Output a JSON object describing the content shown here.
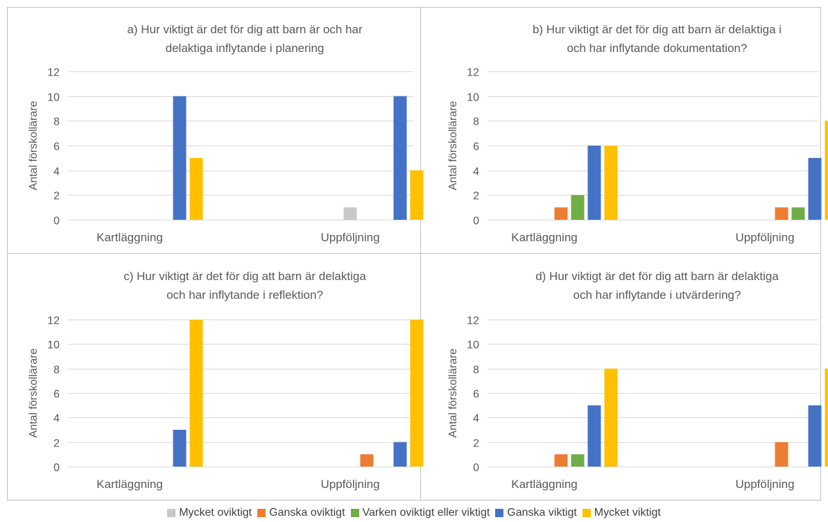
{
  "chart_data": [
    {
      "type": "bar",
      "title": "a) Hur viktigt är det för dig att barn är delaktiga och har inflytande i planering",
      "ylabel": "Antal förskollärare",
      "xlabel": "",
      "ylim": [
        0,
        12
      ],
      "yticks": [
        "0",
        "2",
        "4",
        "6",
        "8",
        "10",
        "12"
      ],
      "categories": [
        "Kartläggning",
        "Uppföljning"
      ],
      "series": [
        {
          "name": "Mycket oviktigt",
          "values": [
            0,
            1
          ]
        },
        {
          "name": "Ganska oviktigt",
          "values": [
            0,
            0
          ]
        },
        {
          "name": "Varken oviktigt eller viktigt",
          "values": [
            0,
            0
          ]
        },
        {
          "name": "Ganska viktigt",
          "values": [
            10,
            10
          ]
        },
        {
          "name": "Mycket viktigt",
          "values": [
            5,
            4
          ]
        }
      ]
    },
    {
      "type": "bar",
      "title": "b) Hur viktigt är det för dig att barn är delaktiga och har inflytande i dokumentation?",
      "ylabel": "Antal förskollärare",
      "xlabel": "",
      "ylim": [
        0,
        12
      ],
      "yticks": [
        "0",
        "2",
        "4",
        "6",
        "8",
        "10",
        "12"
      ],
      "categories": [
        "Kartläggning",
        "Uppföljning"
      ],
      "series": [
        {
          "name": "Mycket oviktigt",
          "values": [
            0,
            0
          ]
        },
        {
          "name": "Ganska oviktigt",
          "values": [
            1,
            1
          ]
        },
        {
          "name": "Varken oviktigt eller viktigt",
          "values": [
            2,
            1
          ]
        },
        {
          "name": "Ganska viktigt",
          "values": [
            6,
            5
          ]
        },
        {
          "name": "Mycket viktigt",
          "values": [
            6,
            8
          ]
        }
      ]
    },
    {
      "type": "bar",
      "title": "c) Hur viktigt är det för dig att barn är delaktiga och har inflytande i reflektion?",
      "ylabel": "Antal förskollärare",
      "xlabel": "",
      "ylim": [
        0,
        12
      ],
      "yticks": [
        "0",
        "2",
        "4",
        "6",
        "8",
        "10",
        "12"
      ],
      "categories": [
        "Kartläggning",
        "Uppföljning"
      ],
      "series": [
        {
          "name": "Mycket oviktigt",
          "values": [
            0,
            0
          ]
        },
        {
          "name": "Ganska oviktigt",
          "values": [
            0,
            1
          ]
        },
        {
          "name": "Varken oviktigt eller viktigt",
          "values": [
            0,
            0
          ]
        },
        {
          "name": "Ganska viktigt",
          "values": [
            3,
            2
          ]
        },
        {
          "name": "Mycket viktigt",
          "values": [
            12,
            12
          ]
        }
      ]
    },
    {
      "type": "bar",
      "title": "d) Hur viktigt är det för dig att barn är delaktiga och har inflytande i utvärdering?",
      "ylabel": "Antal förskollärare",
      "xlabel": "",
      "ylim": [
        0,
        12
      ],
      "yticks": [
        "0",
        "2",
        "4",
        "6",
        "8",
        "10",
        "12"
      ],
      "categories": [
        "Kartläggning",
        "Uppföljning"
      ],
      "series": [
        {
          "name": "Mycket oviktigt",
          "values": [
            0,
            0
          ]
        },
        {
          "name": "Ganska oviktigt",
          "values": [
            1,
            2
          ]
        },
        {
          "name": "Varken oviktigt eller viktigt",
          "values": [
            1,
            0
          ]
        },
        {
          "name": "Ganska viktigt",
          "values": [
            5,
            5
          ]
        },
        {
          "name": "Mycket viktigt",
          "values": [
            8,
            8
          ]
        }
      ]
    }
  ],
  "legend": {
    "placement": "bottom",
    "items": [
      {
        "label": "Mycket oviktigt",
        "color": "#c8c8c8"
      },
      {
        "label": "Ganska oviktigt",
        "color": "#ed7d31"
      },
      {
        "label": "Varken oviktigt eller viktigt",
        "color": "#70ad47"
      },
      {
        "label": "Ganska viktigt",
        "color": "#4472c4"
      },
      {
        "label": "Mycket viktigt",
        "color": "#ffc000"
      }
    ]
  },
  "style": {
    "gridline_color": "#d9d9d9",
    "border_color": "#bfbfbf",
    "text_color": "#595959"
  }
}
